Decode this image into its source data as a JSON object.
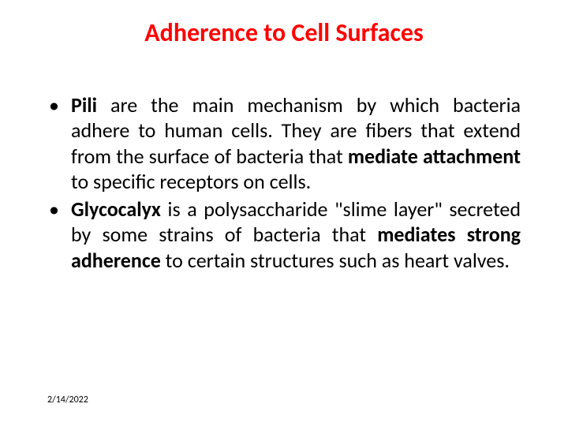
{
  "slide": {
    "title": "Adherence to Cell Surfaces",
    "title_color": "#ff0000",
    "title_fontsize": 32,
    "body_color": "#000000",
    "body_fontsize": 26,
    "bullet_color": "#000000",
    "bullets": [
      {
        "spans": [
          {
            "text": "Pili ",
            "bold": true
          },
          {
            "text": "are the main mechanism by which bacteria adhere to human cells. They are fibers that extend from the surface of bacteria that ",
            "bold": false
          },
          {
            "text": "mediate attachment ",
            "bold": true
          },
          {
            "text": "to specific receptors on cells.",
            "bold": false
          }
        ]
      },
      {
        "spans": [
          {
            "text": "Glycocalyx ",
            "bold": true
          },
          {
            "text": "is a polysaccharide \"slime layer\" secreted by some strains of bacteria that ",
            "bold": false
          },
          {
            "text": "mediates strong adherence ",
            "bold": true
          },
          {
            "text": "to certain structures such as heart valves.",
            "bold": false
          }
        ]
      }
    ],
    "footer_date": "2/14/2022",
    "footer_color": "#000000",
    "footer_fontsize": 12,
    "background_color": "#ffffff"
  }
}
